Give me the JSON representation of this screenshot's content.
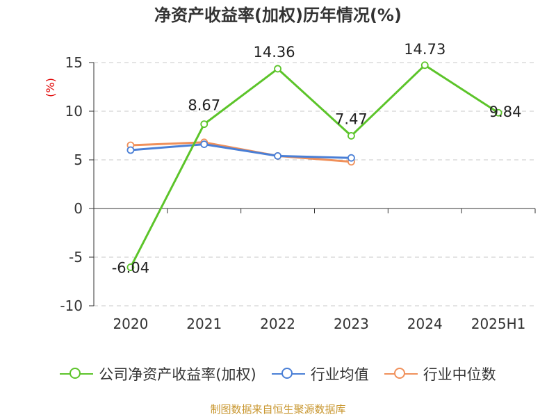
{
  "chart_data": {
    "type": "line",
    "title": "净资产收益率(加权)历年情况(%)",
    "ylabel": "(%)",
    "xlabel": "",
    "categories": [
      "2020",
      "2021",
      "2022",
      "2023",
      "2024",
      "2025H1"
    ],
    "ylim": [
      -10,
      15
    ],
    "yticks": [
      -10,
      -5,
      0,
      5,
      10,
      15
    ],
    "grid": true,
    "legend_position": "bottom",
    "series": [
      {
        "name": "公司净资产收益率(加权)",
        "color": "#5cc42a",
        "values": [
          -6.04,
          8.67,
          14.36,
          7.47,
          14.73,
          9.84
        ],
        "labels": [
          "-6.04",
          "8.67",
          "14.36",
          "7.47",
          "14.73",
          "9.84"
        ]
      },
      {
        "name": "行业均值",
        "color": "#4a7fd6",
        "values": [
          6.0,
          6.6,
          5.4,
          5.2,
          null,
          null
        ]
      },
      {
        "name": "行业中位数",
        "color": "#f0905a",
        "values": [
          6.5,
          6.8,
          5.4,
          4.8,
          null,
          null
        ]
      }
    ]
  },
  "source": "制图数据来自恒生聚源数据库"
}
